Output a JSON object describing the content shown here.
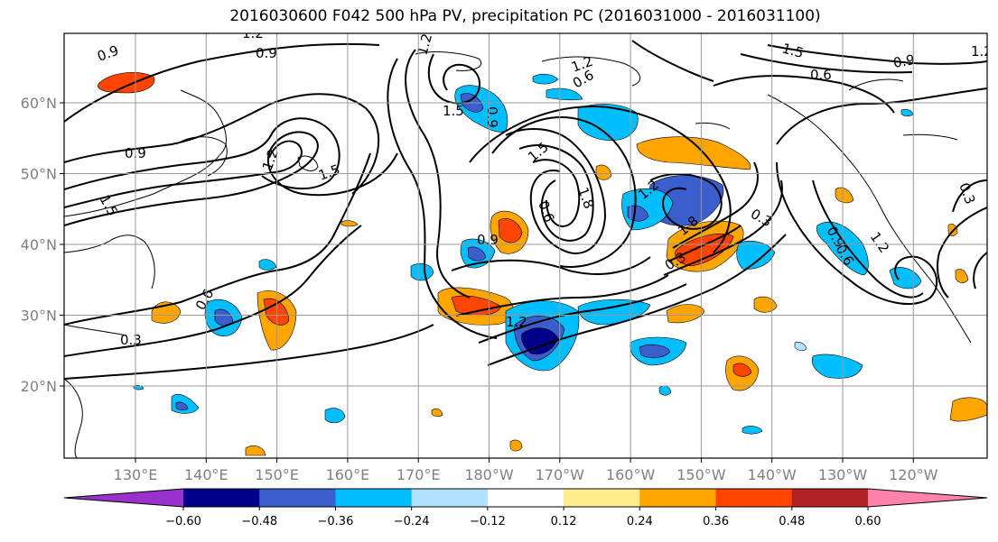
{
  "title": "2016030600 F042 500 hPa PV, precipitation PC (2016031000 - 2016031100)",
  "map": {
    "lat_ticks": [
      "20°N",
      "30°N",
      "40°N",
      "50°N",
      "60°N"
    ],
    "lon_ticks": [
      "130°E",
      "140°E",
      "150°E",
      "160°E",
      "170°E",
      "180°W",
      "170°W",
      "160°W",
      "150°W",
      "140°W",
      "130°W",
      "120°W"
    ],
    "pv_contour_labels": [
      "0.3",
      "0.6",
      "0.9",
      "1.2",
      "1.5",
      "1.8"
    ]
  },
  "colorbar": {
    "ticks": [
      "−0.60",
      "−0.48",
      "−0.36",
      "−0.24",
      "−0.12",
      "0.12",
      "0.24",
      "0.36",
      "0.48",
      "0.60"
    ],
    "colors": [
      "#9932cc",
      "#00008b",
      "#3a5fcd",
      "#00bfff",
      "#b0e2ff",
      "#ffffff",
      "#ffec8b",
      "#ffa500",
      "#ff4500",
      "#b22222",
      "#ff82ab"
    ],
    "extend": "both"
  }
}
